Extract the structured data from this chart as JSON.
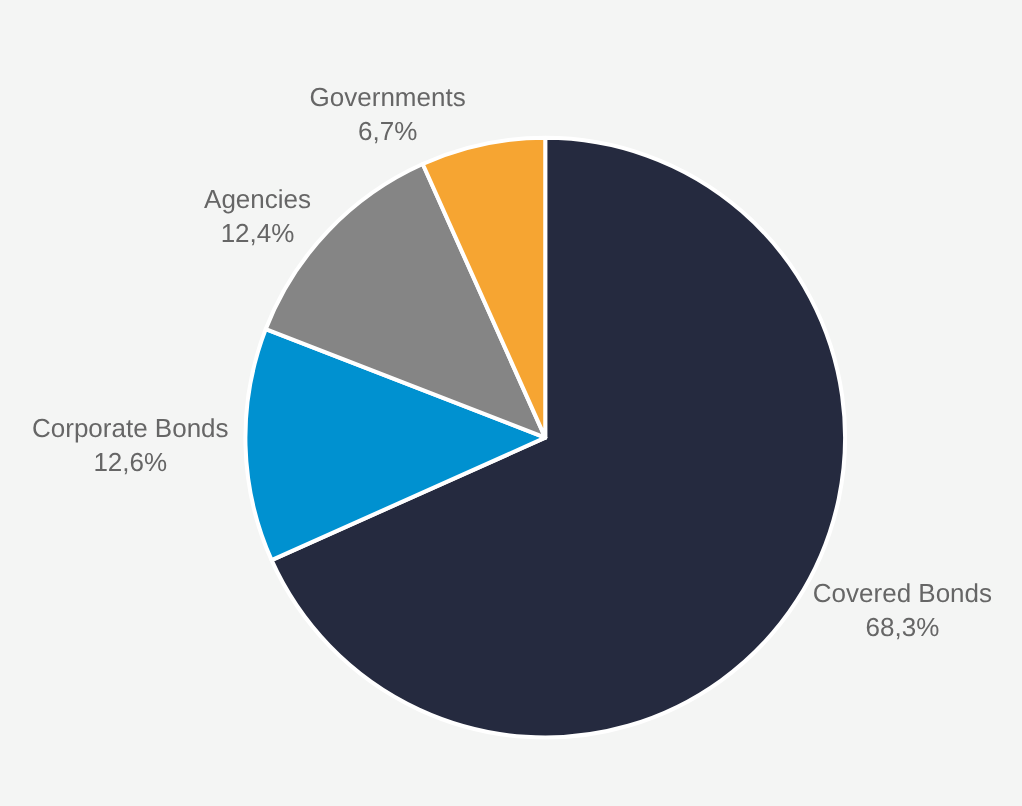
{
  "chart_data": {
    "type": "pie",
    "categories": [
      "Covered Bonds",
      "Corporate Bonds",
      "Agencies",
      "Governments"
    ],
    "values": [
      68.3,
      12.6,
      12.4,
      6.7
    ],
    "value_labels": [
      "68,3%",
      "12,6%",
      "12,4%",
      "6,7%"
    ],
    "colors": [
      "#252a3f",
      "#0091d0",
      "#858585",
      "#f6a532"
    ],
    "legend": false
  }
}
